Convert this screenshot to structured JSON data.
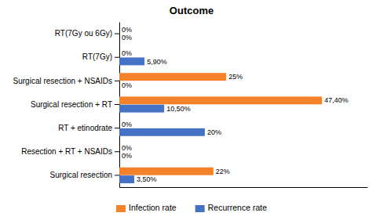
{
  "chart_data": {
    "type": "bar",
    "orientation": "horizontal",
    "title": "Outcome",
    "categories": [
      "Surgical resection",
      "Resection + RT + NSAIDs",
      "RT + etinodrate",
      "Surgical resection + RT",
      "Surgical resection + NSAIDs",
      "RT(7Gy)",
      "RT(7Gy ou 6Gy)"
    ],
    "series": [
      {
        "name": "Infection rate",
        "color": "#F4822A",
        "values": [
          22,
          0,
          0,
          47.4,
          25,
          0,
          0
        ],
        "value_labels": [
          "22%",
          "0%",
          "0%",
          "47,40%",
          "25%",
          "0%",
          "0%"
        ]
      },
      {
        "name": "Recurrence rate",
        "color": "#4472C4",
        "values": [
          3.5,
          0,
          20,
          10.5,
          0,
          5.9,
          0
        ],
        "value_labels": [
          "3,50%",
          "0%",
          "20%",
          "10,50%",
          "0%",
          "5,90%",
          "0%"
        ]
      }
    ],
    "xlim": [
      0,
      58
    ],
    "data_labels": true,
    "tick_labels": "y",
    "legend": "bottom",
    "grid": false
  }
}
